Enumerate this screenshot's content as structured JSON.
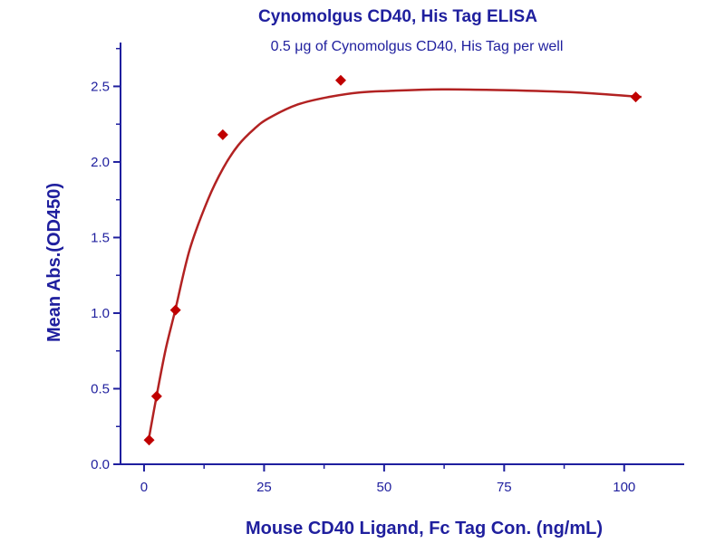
{
  "chart_data": {
    "type": "scatter",
    "title": "Cynomolgus CD40, His Tag ELISA",
    "subtitle": "0.5 μg of Cynomolgus CD40, His Tag per well",
    "xlabel": "Mouse CD40 Ligand, Fc Tag Con. (ng/mL)",
    "ylabel": "Mean Abs.(OD450)",
    "xlim": [
      -4.9,
      112.5
    ],
    "ylim": [
      0,
      2.79
    ],
    "xticks": [
      0,
      25,
      50,
      75,
      100
    ],
    "xtick_labels": [
      "0",
      "25",
      "50",
      "75",
      "100"
    ],
    "yticks": [
      0,
      0.5,
      1.0,
      1.5,
      2.0,
      2.5
    ],
    "ytick_labels": [
      "0.0",
      "0.5",
      "1.0",
      "1.5",
      "2.0",
      "2.5"
    ],
    "grid": false,
    "colors": {
      "axis": "#1f1f9e",
      "series": "#c00000",
      "curve": "#b22222"
    },
    "series": [
      {
        "name": "Mean Abs.",
        "marker": "diamond",
        "x": [
          1.05,
          2.62,
          6.55,
          16.4,
          40.96,
          102.4
        ],
        "y": [
          0.16,
          0.45,
          1.02,
          2.18,
          2.54,
          2.43
        ]
      }
    ],
    "fit_curve": {
      "x": [
        1.0,
        2.6,
        4.5,
        6.5,
        9.5,
        13.3,
        16.5,
        19.6,
        23,
        26,
        32,
        38.5,
        45,
        51,
        62,
        75,
        90,
        103.6
      ],
      "y": [
        0.17,
        0.45,
        0.76,
        1.02,
        1.42,
        1.75,
        1.96,
        2.11,
        2.22,
        2.29,
        2.38,
        2.43,
        2.46,
        2.47,
        2.48,
        2.475,
        2.46,
        2.43
      ]
    }
  }
}
